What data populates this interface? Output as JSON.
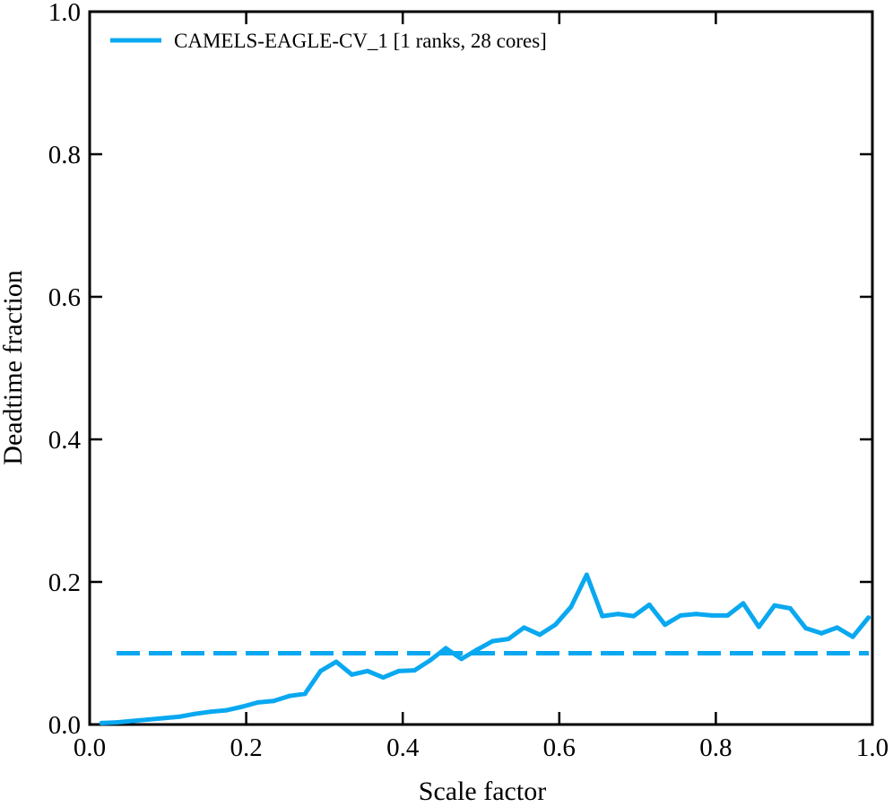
{
  "chart_data": {
    "type": "line",
    "title": "",
    "xlabel": "Scale factor",
    "ylabel": "Deadtime fraction",
    "xlim": [
      0.0,
      1.0
    ],
    "ylim": [
      0.0,
      1.0
    ],
    "x_ticks": [
      "0.0",
      "0.2",
      "0.4",
      "0.6",
      "0.8",
      "1.0"
    ],
    "y_ticks": [
      "0.0",
      "0.2",
      "0.4",
      "0.6",
      "0.8",
      "1.0"
    ],
    "grid": false,
    "legend_position": "top-left",
    "color": "#0aa8f0",
    "series": [
      {
        "name": "CAMELS-EAGLE-CV_1 [1 ranks, 28 cores]",
        "x": [
          0.015,
          0.035,
          0.055,
          0.075,
          0.095,
          0.115,
          0.135,
          0.155,
          0.175,
          0.195,
          0.215,
          0.235,
          0.255,
          0.275,
          0.295,
          0.315,
          0.335,
          0.355,
          0.375,
          0.395,
          0.415,
          0.435,
          0.455,
          0.475,
          0.495,
          0.515,
          0.535,
          0.555,
          0.575,
          0.595,
          0.615,
          0.635,
          0.655,
          0.675,
          0.695,
          0.715,
          0.735,
          0.755,
          0.775,
          0.795,
          0.815,
          0.835,
          0.855,
          0.875,
          0.895,
          0.915,
          0.935,
          0.955,
          0.975,
          0.995
        ],
        "y": [
          0.002,
          0.003,
          0.005,
          0.007,
          0.009,
          0.011,
          0.015,
          0.018,
          0.02,
          0.025,
          0.031,
          0.033,
          0.04,
          0.043,
          0.075,
          0.088,
          0.07,
          0.075,
          0.066,
          0.075,
          0.076,
          0.09,
          0.107,
          0.092,
          0.105,
          0.117,
          0.12,
          0.136,
          0.126,
          0.14,
          0.165,
          0.21,
          0.152,
          0.155,
          0.152,
          0.168,
          0.14,
          0.153,
          0.155,
          0.153,
          0.153,
          0.17,
          0.137,
          0.167,
          0.163,
          0.135,
          0.128,
          0.136,
          0.123,
          0.15
        ]
      }
    ],
    "reference_line": {
      "y": 0.1,
      "style": "dashed"
    }
  }
}
